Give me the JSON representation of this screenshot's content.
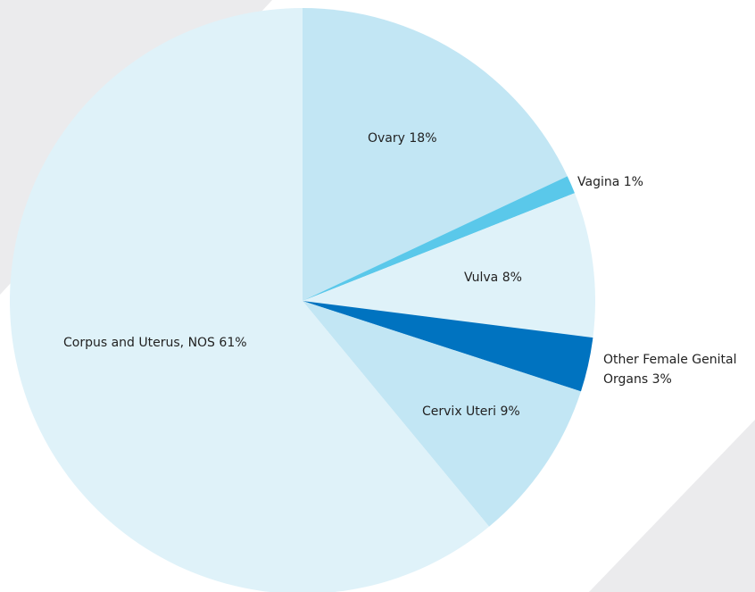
{
  "chart_data": {
    "type": "pie",
    "categories": [
      "Ovary",
      "Vagina",
      "Vulva",
      "Other Female Genital Organs",
      "Cervix Uteri",
      "Corpus and Uterus, NOS"
    ],
    "values": [
      18,
      1,
      8,
      3,
      9,
      61
    ],
    "value_labels": [
      "18%",
      "1%",
      "8%",
      "3%",
      "9%",
      "61%"
    ],
    "colors": [
      "#c2e6f4",
      "#5ac8ea",
      "#dff2f9",
      "#0073c0",
      "#c2e6f4",
      "#dff2f9"
    ]
  }
}
